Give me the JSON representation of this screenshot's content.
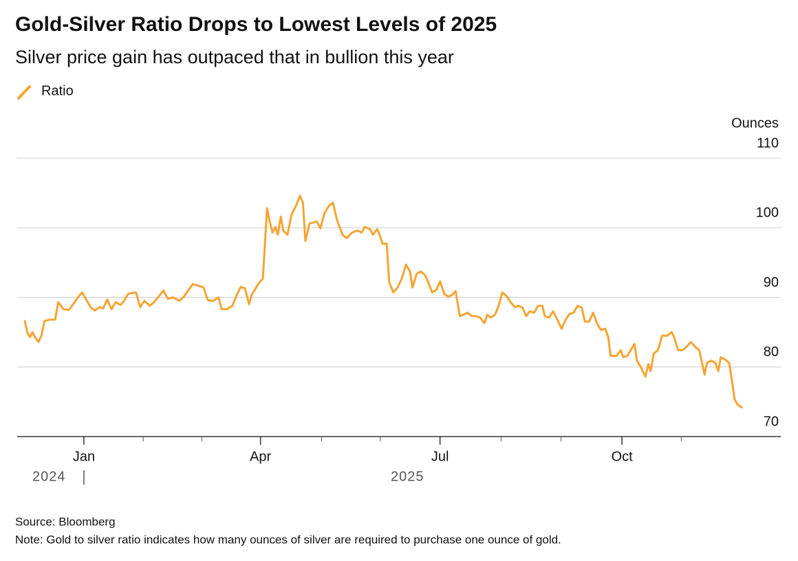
{
  "chart_data": {
    "type": "line",
    "title": "Gold-Silver Ratio Drops to Lowest Levels of 2025",
    "subtitle": "Silver price gain has outpaced that in bullion this year",
    "y_label": "Ounces",
    "source": "Source: Bloomberg",
    "note": "Note: Gold to silver ratio indicates how many ounces of silver are required to purchase one ounce of gold.",
    "year_labels": [
      "2024",
      "2025"
    ],
    "grid": true,
    "legend_position": "top-left",
    "ylim": [
      70,
      110
    ],
    "yticks": [
      70,
      80,
      90,
      100,
      110
    ],
    "xlim": [
      -1,
      11
    ],
    "xticks": [
      {
        "value": 0,
        "label": "Jan"
      },
      {
        "value": 2.95,
        "label": "Apr"
      },
      {
        "value": 5.95,
        "label": "Jul"
      },
      {
        "value": 8.99,
        "label": "Oct"
      }
    ],
    "x_minor_ticks": [
      0.99,
      1.97,
      3.97,
      4.95,
      6.97,
      7.97,
      9.98
    ],
    "x": [
      -0.99,
      -0.94,
      -0.9,
      -0.86,
      -0.82,
      -0.76,
      -0.71,
      -0.66,
      -0.57,
      -0.48,
      -0.43,
      -0.34,
      -0.25,
      -0.18,
      -0.1,
      -0.03,
      0.03,
      0.11,
      0.18,
      0.26,
      0.32,
      0.39,
      0.46,
      0.53,
      0.61,
      0.67,
      0.74,
      0.87,
      0.94,
      1.01,
      1.1,
      1.17,
      1.24,
      1.33,
      1.4,
      1.49,
      1.59,
      1.66,
      1.72,
      1.82,
      1.91,
      2.0,
      2.07,
      2.16,
      2.25,
      2.3,
      2.39,
      2.48,
      2.55,
      2.62,
      2.69,
      2.76,
      2.8,
      2.91,
      2.99,
      3.06,
      3.1,
      3.15,
      3.2,
      3.24,
      3.29,
      3.33,
      3.4,
      3.47,
      3.54,
      3.61,
      3.66,
      3.7,
      3.77,
      3.89,
      3.95,
      4.02,
      4.09,
      4.16,
      4.23,
      4.32,
      4.39,
      4.48,
      4.57,
      4.64,
      4.69,
      4.78,
      4.83,
      4.9,
      4.94,
      4.99,
      5.06,
      5.1,
      5.17,
      5.24,
      5.31,
      5.38,
      5.45,
      5.49,
      5.56,
      5.63,
      5.7,
      5.75,
      5.82,
      5.89,
      5.95,
      6.02,
      6.09,
      6.16,
      6.21,
      6.28,
      6.34,
      6.41,
      6.48,
      6.55,
      6.62,
      6.69,
      6.74,
      6.8,
      6.87,
      6.93,
      6.99,
      7.06,
      7.13,
      7.2,
      7.26,
      7.33,
      7.39,
      7.45,
      7.52,
      7.59,
      7.66,
      7.7,
      7.77,
      7.84,
      7.91,
      7.98,
      8.05,
      8.11,
      8.18,
      8.25,
      8.32,
      8.37,
      8.44,
      8.51,
      8.57,
      8.64,
      8.71,
      8.76,
      8.8,
      8.9,
      8.97,
      9.01,
      9.08,
      9.15,
      9.2,
      9.24,
      9.31,
      9.38,
      9.43,
      9.47,
      9.52,
      9.59,
      9.66,
      9.75,
      9.82,
      9.86,
      9.93,
      10.0,
      10.07,
      10.14,
      10.21,
      10.28,
      10.32,
      10.37,
      10.41,
      10.48,
      10.55,
      10.6,
      10.64,
      10.71,
      10.78,
      10.83,
      10.87,
      10.92,
      10.99
    ],
    "series": [
      {
        "name": "Ratio",
        "color": "#f5a431",
        "values": [
          86.6,
          84.8,
          84.3,
          85.0,
          84.3,
          83.6,
          84.5,
          86.6,
          86.8,
          86.8,
          89.3,
          88.3,
          88.2,
          89.0,
          90.0,
          90.7,
          89.8,
          88.6,
          88.1,
          88.6,
          88.4,
          89.7,
          88.3,
          89.3,
          88.9,
          89.5,
          90.5,
          90.7,
          88.6,
          89.5,
          88.8,
          89.3,
          90.0,
          91.0,
          89.8,
          90.0,
          89.5,
          90.0,
          90.7,
          91.9,
          91.7,
          91.4,
          89.6,
          89.5,
          90.0,
          88.3,
          88.3,
          88.8,
          90.3,
          91.5,
          91.3,
          89.0,
          90.3,
          91.9,
          92.7,
          102.8,
          101.1,
          99.3,
          100.1,
          99.0,
          101.6,
          99.6,
          99.0,
          101.9,
          103.1,
          104.6,
          103.6,
          98.1,
          100.6,
          100.9,
          99.9,
          102.1,
          103.1,
          103.6,
          101.1,
          99.0,
          98.5,
          99.3,
          99.6,
          99.3,
          100.1,
          99.8,
          99.0,
          99.8,
          99.0,
          97.7,
          97.7,
          92.2,
          90.7,
          91.4,
          92.7,
          94.7,
          93.7,
          91.4,
          93.4,
          93.7,
          93.2,
          92.2,
          90.7,
          91.1,
          92.3,
          90.5,
          90.1,
          90.4,
          90.9,
          87.3,
          87.5,
          87.8,
          87.3,
          87.3,
          87.1,
          86.3,
          87.5,
          87.1,
          87.5,
          88.8,
          90.7,
          90.2,
          89.3,
          88.6,
          88.8,
          88.5,
          87.3,
          88.0,
          87.8,
          88.8,
          88.8,
          87.3,
          87.1,
          88.0,
          86.8,
          85.5,
          86.8,
          87.6,
          87.8,
          88.8,
          88.5,
          86.5,
          86.5,
          87.8,
          86.3,
          85.3,
          85.5,
          84.3,
          81.6,
          81.6,
          82.4,
          81.4,
          81.6,
          82.6,
          83.3,
          80.9,
          79.9,
          78.6,
          80.4,
          79.4,
          81.9,
          82.4,
          84.5,
          84.5,
          85.0,
          84.3,
          82.4,
          82.4,
          82.9,
          83.6,
          82.9,
          82.4,
          80.9,
          78.9,
          80.6,
          80.9,
          80.6,
          79.4,
          81.4,
          81.1,
          80.6,
          77.9,
          75.4,
          74.6,
          74.2
        ]
      }
    ]
  }
}
